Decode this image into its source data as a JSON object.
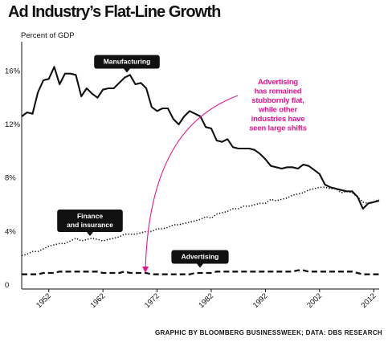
{
  "title": "Ad Industry’s Flat-Line Growth",
  "source": "GRAPHIC BY BLOOMBERG BUSINESSWEEK; DATA: DBS RESEARCH",
  "colors": {
    "line": "#111111",
    "annotation": "#e3168c",
    "callout_bg": "#111111",
    "callout_text": "#ffffff"
  },
  "chart_data": {
    "type": "line",
    "ylabel": "Percent of GDP",
    "xlabel": "",
    "xlim": [
      1947,
      2013
    ],
    "ylim": [
      0,
      18
    ],
    "yticks": [
      0,
      4,
      8,
      12,
      16
    ],
    "ytick_labels": [
      "0",
      "4%",
      "8%",
      "12%",
      "16%"
    ],
    "xticks": [
      1952,
      1962,
      1972,
      1982,
      1992,
      2002,
      2012
    ],
    "xtick_labels": [
      "1952",
      "1962",
      "1972",
      "1982",
      "1992",
      "2002",
      "2012"
    ],
    "grid": false,
    "x": [
      1947,
      1948,
      1949,
      1950,
      1951,
      1952,
      1953,
      1954,
      1955,
      1956,
      1957,
      1958,
      1959,
      1960,
      1961,
      1962,
      1963,
      1964,
      1965,
      1966,
      1967,
      1968,
      1969,
      1970,
      1971,
      1972,
      1973,
      1974,
      1975,
      1976,
      1977,
      1978,
      1979,
      1980,
      1981,
      1982,
      1983,
      1984,
      1985,
      1986,
      1987,
      1988,
      1989,
      1990,
      1991,
      1992,
      1993,
      1994,
      1995,
      1996,
      1997,
      1998,
      1999,
      2000,
      2001,
      2002,
      2003,
      2004,
      2005,
      2006,
      2007,
      2008,
      2009,
      2010,
      2011,
      2012,
      2013
    ],
    "series": [
      {
        "name": "Manufacturing",
        "style": "solid",
        "values": [
          12.9,
          13.2,
          13.1,
          14.7,
          15.6,
          15.7,
          16.6,
          15.3,
          16.1,
          16.1,
          16.0,
          14.4,
          15.0,
          14.6,
          14.3,
          14.9,
          15.0,
          15.0,
          15.4,
          15.8,
          16.0,
          15.3,
          15.4,
          15.0,
          13.6,
          13.3,
          13.5,
          13.5,
          12.7,
          12.3,
          12.9,
          13.3,
          13.1,
          12.9,
          12.1,
          12.0,
          11.1,
          11.0,
          11.2,
          10.6,
          10.5,
          10.5,
          10.5,
          10.4,
          10.1,
          9.7,
          9.2,
          9.1,
          9.0,
          9.1,
          9.1,
          9.0,
          9.3,
          9.2,
          8.9,
          8.6,
          7.8,
          7.6,
          7.5,
          7.4,
          7.3,
          7.3,
          6.9,
          6.0,
          6.4,
          6.5,
          6.6
        ]
      },
      {
        "name": "Finance and insurance",
        "style": "dotted",
        "values": [
          2.5,
          2.6,
          2.8,
          2.8,
          3.0,
          3.2,
          3.3,
          3.4,
          3.4,
          3.6,
          3.8,
          3.6,
          3.7,
          3.8,
          3.7,
          3.6,
          3.7,
          3.8,
          3.9,
          4.1,
          4.1,
          4.1,
          4.2,
          4.3,
          4.3,
          4.5,
          4.5,
          4.6,
          4.8,
          4.8,
          4.9,
          5.0,
          5.1,
          5.2,
          5.4,
          5.3,
          5.6,
          5.7,
          5.8,
          6.0,
          6.0,
          6.2,
          6.2,
          6.3,
          6.4,
          6.4,
          6.7,
          6.6,
          6.7,
          6.8,
          7.0,
          7.1,
          7.2,
          7.4,
          7.5,
          7.6,
          7.6,
          7.5,
          7.5,
          7.2,
          7.3,
          7.2,
          6.9,
          6.5,
          6.4,
          6.5,
          6.7
        ]
      },
      {
        "name": "Advertising",
        "style": "dashed",
        "values": [
          1.1,
          1.1,
          1.1,
          1.1,
          1.2,
          1.2,
          1.2,
          1.3,
          1.3,
          1.3,
          1.3,
          1.3,
          1.3,
          1.3,
          1.3,
          1.2,
          1.2,
          1.2,
          1.2,
          1.3,
          1.2,
          1.2,
          1.2,
          1.2,
          1.1,
          1.1,
          1.1,
          1.1,
          1.1,
          1.1,
          1.1,
          1.1,
          1.2,
          1.2,
          1.2,
          1.2,
          1.3,
          1.3,
          1.3,
          1.3,
          1.3,
          1.3,
          1.3,
          1.3,
          1.3,
          1.3,
          1.3,
          1.3,
          1.3,
          1.3,
          1.3,
          1.4,
          1.4,
          1.3,
          1.3,
          1.3,
          1.3,
          1.3,
          1.3,
          1.3,
          1.3,
          1.3,
          1.2,
          1.1,
          1.1,
          1.1,
          1.1
        ]
      }
    ],
    "callouts": [
      {
        "text_lines": [
          "Manufacturing"
        ],
        "series": "Manufacturing"
      },
      {
        "text_lines": [
          "Finance",
          "and insurance"
        ],
        "series": "Finance and insurance"
      },
      {
        "text_lines": [
          "Advertising"
        ],
        "series": "Advertising"
      }
    ],
    "annotation": {
      "text_lines": [
        "Advertising",
        "has remained",
        "stubbornly flat,",
        "while other",
        "industries have",
        "seen large shifts"
      ]
    }
  }
}
